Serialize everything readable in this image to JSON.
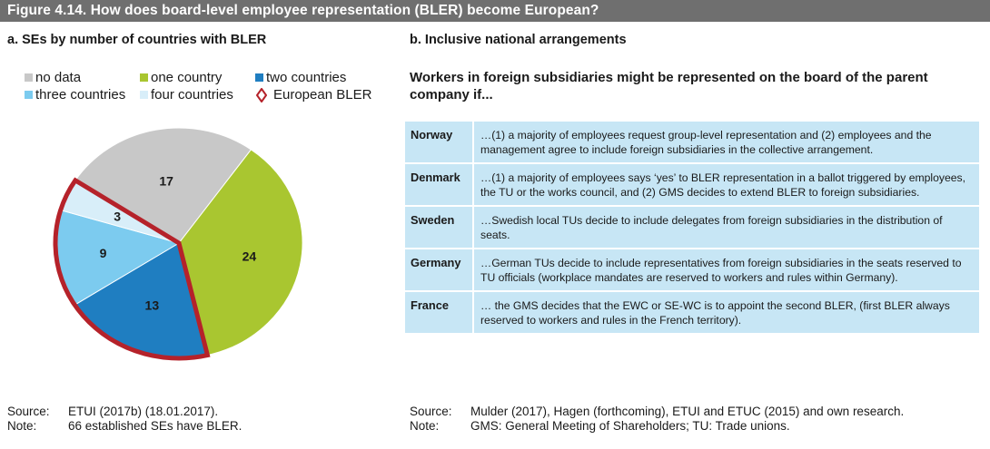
{
  "figure_title": "Figure 4.14.   How does board-level employee representation (BLER) become European?",
  "panel_a_title": "a. SEs by number of countries with BLER",
  "panel_b_title": "b. Inclusive national arrangements",
  "legend": [
    {
      "label": "no data",
      "color": "#c8c8c8"
    },
    {
      "label": "one country",
      "color": "#a9c630"
    },
    {
      "label": "two countries",
      "color": "#1f7ec1"
    },
    {
      "label": "three countries",
      "color": "#7ccbef"
    },
    {
      "label": "four countries",
      "color": "#d8eef9"
    },
    {
      "label": "European BLER",
      "color": "#b5222a"
    }
  ],
  "chart_data": {
    "type": "pie",
    "title": "SEs by number of countries with BLER",
    "categories": [
      "no data",
      "one country",
      "two countries",
      "three countries",
      "four countries"
    ],
    "values": [
      17,
      24,
      13,
      9,
      3
    ],
    "value_labels": [
      "17",
      "24",
      "13",
      "9",
      "3"
    ],
    "colors": [
      "#c8c8c8",
      "#a9c630",
      "#1f7ec1",
      "#7ccbef",
      "#d8eef9"
    ],
    "highlight": {
      "label": "European BLER",
      "categories": [
        "two countries",
        "three countries",
        "four countries"
      ],
      "color": "#b5222a"
    },
    "legend_position": "top"
  },
  "intro_text": "Workers in foreign subsidiaries might be represented on the board of the parent company if...",
  "table_rows": [
    {
      "country": "Norway",
      "text": "…(1) a majority of employees request group-level representation and (2) employees and the management agree to include foreign subsidiaries in the collective arrangement."
    },
    {
      "country": "Denmark",
      "text": "…(1) a majority of employees says ‘yes’ to BLER representation in a ballot triggered by employees, the TU or the works council, and (2) GMS decides to extend BLER to foreign subsidiaries."
    },
    {
      "country": "Sweden",
      "text": "…Swedish local TUs decide to include delegates from foreign subsidiaries in the distribution of seats."
    },
    {
      "country": "Germany",
      "text": "…German TUs decide to include representatives from foreign subsidiaries in the seats reserved to TU officials (workplace mandates are reserved to workers and rules within Germany)."
    },
    {
      "country": "France",
      "text": "… the GMS decides that the EWC or SE-WC is to appoint the second BLER, (first BLER always reserved to workers and rules in the French territory)."
    }
  ],
  "footer_left": {
    "source_label": "Source:",
    "source": "ETUI (2017b) (18.01.2017).",
    "note_label": "Note:",
    "note": "66 established SEs have BLER."
  },
  "footer_right": {
    "source_label": "Source:",
    "source": "Mulder (2017), Hagen (forthcoming), ETUI and ETUC (2015) and own research.",
    "note_label": "Note:",
    "note": "GMS: General Meeting of Shareholders; TU: Trade unions."
  }
}
